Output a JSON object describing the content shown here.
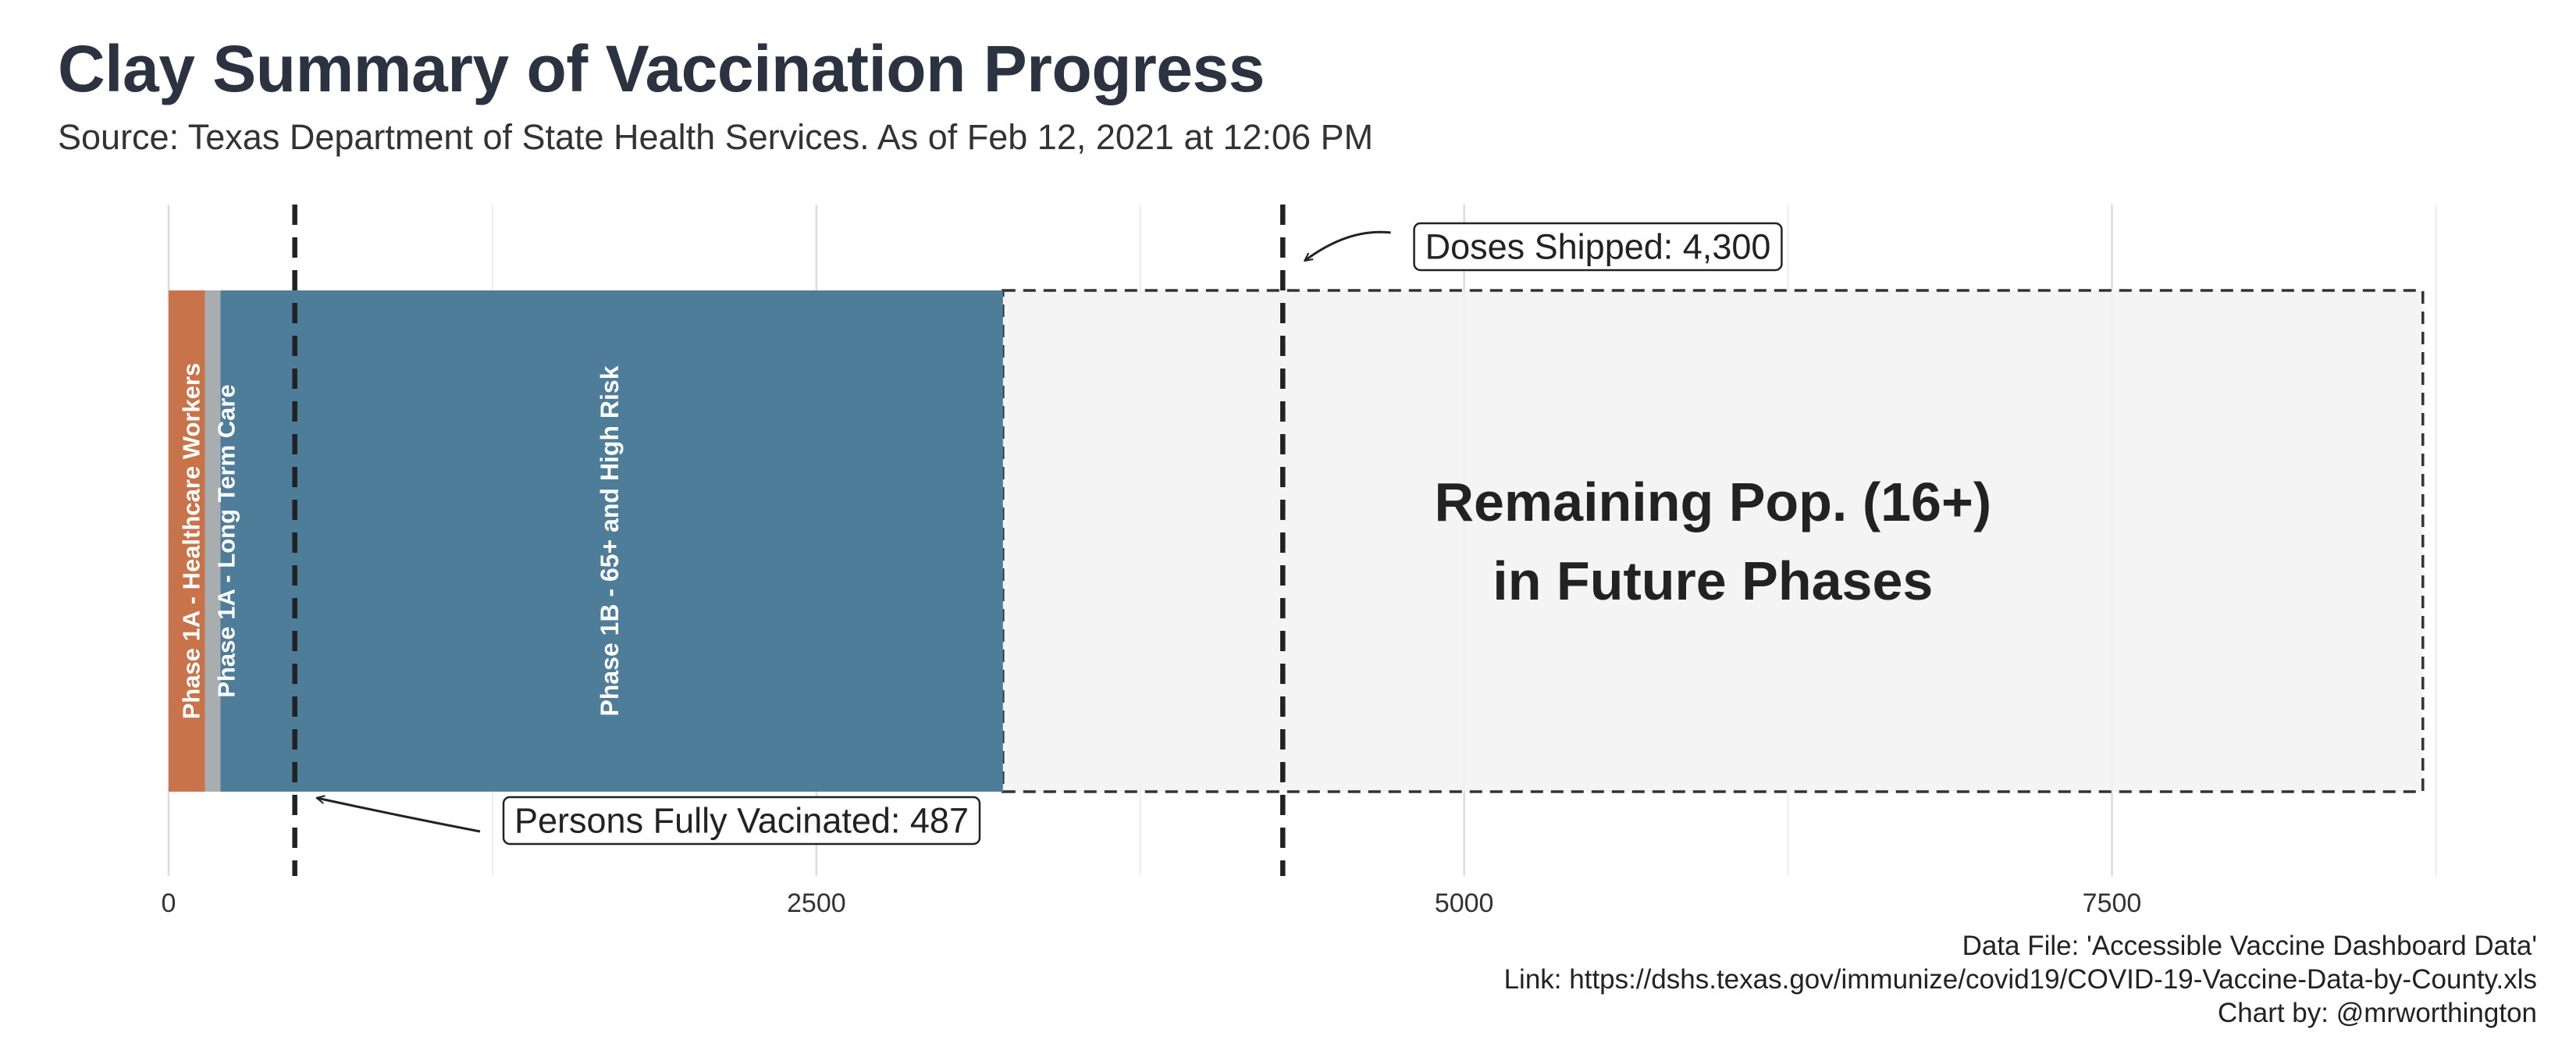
{
  "chart_data": {
    "type": "bar",
    "title": "Clay Summary of Vaccination Progress",
    "subtitle": "Source: Texas Department of State Health Services. As of Feb 12, 2021 at 12:06 PM",
    "xlabel": "",
    "ylabel": "",
    "xlim": [
      0,
      8800
    ],
    "x_ticks": [
      0,
      2500,
      5000,
      7500
    ],
    "x_tick_labels": [
      "0",
      "2500",
      "5000",
      "7500"
    ],
    "grid": true,
    "series": [
      {
        "name": "Phase 1A - Healthcare Workers",
        "start": 0,
        "end": 140,
        "color": "#c8734a"
      },
      {
        "name": "Phase 1A - Long Term Care",
        "start": 140,
        "end": 200,
        "color": "#a8adb0"
      },
      {
        "name": "Phase 1B - 65+ and High Risk",
        "start": 200,
        "end": 3220,
        "color": "#4e7d99"
      }
    ],
    "remaining": {
      "start": 3220,
      "end": 8700,
      "line1": "Remaining Pop. (16+)",
      "line2": "in Future Phases",
      "fill": "#f2f2f2"
    },
    "reference_lines": [
      {
        "name": "Persons Fully Vacinated",
        "value": 487,
        "label": "Persons Fully Vacinated: 487"
      },
      {
        "name": "Doses Shipped",
        "value": 4300,
        "label": "Doses Shipped: 4,300"
      }
    ],
    "caption": [
      "Data File: 'Accessible Vaccine Dashboard Data'",
      "Link: https://dshs.texas.gov/immunize/covid19/COVID-19-Vaccine-Data-by-County.xls",
      "Chart by: @mrworthington"
    ]
  }
}
